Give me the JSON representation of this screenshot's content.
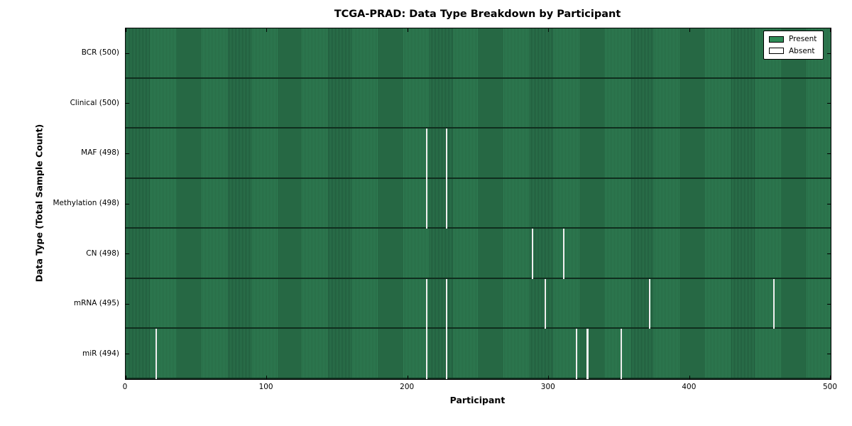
{
  "title": "TCGA-PRAD: Data Type Breakdown by Participant",
  "axes": {
    "xlabel": "Participant",
    "ylabel": "Data Type (Total Sample Count)"
  },
  "legend": {
    "items": [
      {
        "label": "Present",
        "color": "#2e8b57"
      },
      {
        "label": "Absent",
        "color": "#ffffff"
      }
    ]
  },
  "chart_data": {
    "type": "heatmap",
    "title": "TCGA-PRAD: Data Type Breakdown by Participant",
    "xlabel": "Participant",
    "ylabel": "Data Type (Total Sample Count)",
    "xlim": [
      0,
      500
    ],
    "x_ticks": [
      0,
      100,
      200,
      300,
      400,
      500
    ],
    "n_participants": 500,
    "grid": false,
    "legend_position": "upper right",
    "colors": {
      "present": "#2e8b57",
      "absent": "#ffffff"
    },
    "rows": [
      {
        "data_type": "BCR",
        "label": "BCR (500)",
        "total": 500,
        "absent_participants": []
      },
      {
        "data_type": "Clinical",
        "label": "Clinical (500)",
        "total": 500,
        "absent_participants": []
      },
      {
        "data_type": "MAF",
        "label": "MAF (498)",
        "total": 498,
        "absent_participants": [
          213,
          227
        ]
      },
      {
        "data_type": "Methylation",
        "label": "Methylation (498)",
        "total": 498,
        "absent_participants": [
          213,
          227
        ]
      },
      {
        "data_type": "CN",
        "label": "CN (498)",
        "total": 498,
        "absent_participants": [
          288,
          310
        ]
      },
      {
        "data_type": "mRNA",
        "label": "mRNA (495)",
        "total": 495,
        "absent_participants": [
          213,
          227,
          297,
          371,
          459
        ]
      },
      {
        "data_type": "miR",
        "label": "miR (494)",
        "total": 494,
        "absent_participants": [
          21,
          213,
          227,
          319,
          327,
          351
        ]
      }
    ]
  }
}
